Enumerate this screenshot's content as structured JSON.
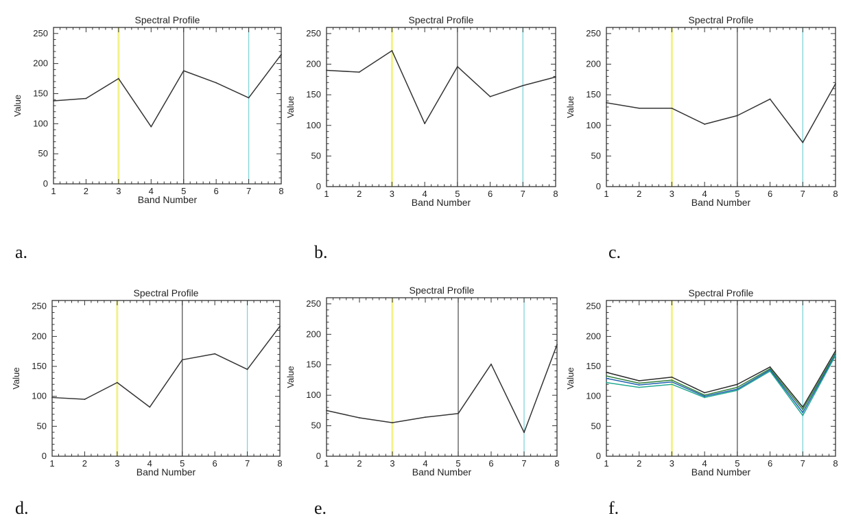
{
  "colors": {
    "axes": "#333333",
    "line": "#333333",
    "yellow": "#f2f28a",
    "black": "#555555",
    "cyan": "#7fd4d8"
  },
  "chart_data": [
    {
      "type": "line",
      "panel_label": "a.",
      "title": "Spectral Profile",
      "xlabel": "Band Number",
      "ylabel": "Value",
      "x": [
        1,
        2,
        3,
        4,
        5,
        6,
        7,
        8
      ],
      "xlim": [
        1,
        8
      ],
      "ylim": [
        0,
        260
      ],
      "xticks": [
        "1",
        "2",
        "3",
        "4",
        "5",
        "6",
        "7",
        "8"
      ],
      "yticks": [
        "0",
        "50",
        "100",
        "150",
        "200",
        "250"
      ],
      "markers": [
        {
          "x": 3,
          "color": "yellow"
        },
        {
          "x": 5,
          "color": "black"
        },
        {
          "x": 7,
          "color": "cyan"
        }
      ],
      "series": [
        {
          "values": [
            138,
            142,
            175,
            95,
            188,
            168,
            143,
            215
          ],
          "color": "#333333"
        }
      ]
    },
    {
      "type": "line",
      "panel_label": "b.",
      "title": "Spectral Profile",
      "xlabel": "Band Number",
      "ylabel": "Value",
      "x": [
        1,
        2,
        3,
        4,
        5,
        6,
        7,
        8
      ],
      "xlim": [
        1,
        8
      ],
      "ylim": [
        0,
        260
      ],
      "xticks": [
        "1",
        "2",
        "3",
        "4",
        "5",
        "6",
        "7",
        "8"
      ],
      "yticks": [
        "0",
        "50",
        "100",
        "150",
        "200",
        "250"
      ],
      "markers": [
        {
          "x": 3,
          "color": "yellow"
        },
        {
          "x": 5,
          "color": "black"
        },
        {
          "x": 7,
          "color": "cyan"
        }
      ],
      "series": [
        {
          "values": [
            190,
            187,
            222,
            103,
            196,
            147,
            165,
            179
          ],
          "color": "#333333"
        }
      ]
    },
    {
      "type": "line",
      "panel_label": "c.",
      "title": "Spectral Profile",
      "xlabel": "Band Number",
      "ylabel": "Value",
      "x": [
        1,
        2,
        3,
        4,
        5,
        6,
        7,
        8
      ],
      "xlim": [
        1,
        8
      ],
      "ylim": [
        0,
        260
      ],
      "xticks": [
        "1",
        "2",
        "3",
        "4",
        "5",
        "6",
        "7",
        "8"
      ],
      "yticks": [
        "0",
        "50",
        "100",
        "150",
        "200",
        "250"
      ],
      "markers": [
        {
          "x": 3,
          "color": "yellow"
        },
        {
          "x": 5,
          "color": "black"
        },
        {
          "x": 7,
          "color": "cyan"
        }
      ],
      "series": [
        {
          "values": [
            137,
            128,
            128,
            102,
            116,
            143,
            72,
            168
          ],
          "color": "#333333"
        }
      ]
    },
    {
      "type": "line",
      "panel_label": "d.",
      "title": "Spectral Profile",
      "xlabel": "Band Number",
      "ylabel": "Value",
      "x": [
        1,
        2,
        3,
        4,
        5,
        6,
        7,
        8
      ],
      "xlim": [
        1,
        8
      ],
      "ylim": [
        0,
        260
      ],
      "xticks": [
        "1",
        "2",
        "3",
        "4",
        "5",
        "6",
        "7",
        "8"
      ],
      "yticks": [
        "0",
        "50",
        "100",
        "150",
        "200",
        "250"
      ],
      "markers": [
        {
          "x": 3,
          "color": "yellow"
        },
        {
          "x": 5,
          "color": "black"
        },
        {
          "x": 7,
          "color": "cyan"
        }
      ],
      "series": [
        {
          "values": [
            98,
            95,
            123,
            82,
            161,
            171,
            145,
            217
          ],
          "color": "#333333"
        }
      ]
    },
    {
      "type": "line",
      "panel_label": "e.",
      "title": "Spectral Profile",
      "xlabel": "Band Number",
      "ylabel": "Value",
      "x": [
        1,
        2,
        3,
        4,
        5,
        6,
        7,
        8
      ],
      "xlim": [
        1,
        8
      ],
      "ylim": [
        0,
        260
      ],
      "xticks": [
        "1",
        "2",
        "3",
        "4",
        "5",
        "6",
        "7",
        "8"
      ],
      "yticks": [
        "0",
        "50",
        "100",
        "150",
        "200",
        "250"
      ],
      "markers": [
        {
          "x": 3,
          "color": "yellow"
        },
        {
          "x": 5,
          "color": "black"
        },
        {
          "x": 7,
          "color": "cyan"
        }
      ],
      "series": [
        {
          "values": [
            75,
            63,
            55,
            64,
            70,
            151,
            39,
            183
          ],
          "color": "#333333"
        }
      ]
    },
    {
      "type": "line",
      "panel_label": "f.",
      "title": "Spectral Profile",
      "xlabel": "Band Number",
      "ylabel": "Value",
      "x": [
        1,
        2,
        3,
        4,
        5,
        6,
        7,
        8
      ],
      "xlim": [
        1,
        8
      ],
      "ylim": [
        0,
        260
      ],
      "xticks": [
        "1",
        "2",
        "3",
        "4",
        "5",
        "6",
        "7",
        "8"
      ],
      "yticks": [
        "0",
        "50",
        "100",
        "150",
        "200",
        "250"
      ],
      "markers": [
        {
          "x": 3,
          "color": "yellow"
        },
        {
          "x": 5,
          "color": "black"
        },
        {
          "x": 7,
          "color": "cyan"
        }
      ],
      "series": [
        {
          "values": [
            140,
            126,
            132,
            106,
            120,
            149,
            82,
            176
          ],
          "color": "#2a2a2a"
        },
        {
          "values": [
            134,
            122,
            127,
            102,
            115,
            146,
            78,
            172
          ],
          "color": "#2f7f3a"
        },
        {
          "values": [
            130,
            119,
            124,
            100,
            112,
            144,
            73,
            170
          ],
          "color": "#2060b0"
        },
        {
          "values": [
            123,
            115,
            120,
            98,
            110,
            142,
            68,
            168
          ],
          "color": "#20a890"
        }
      ]
    }
  ]
}
